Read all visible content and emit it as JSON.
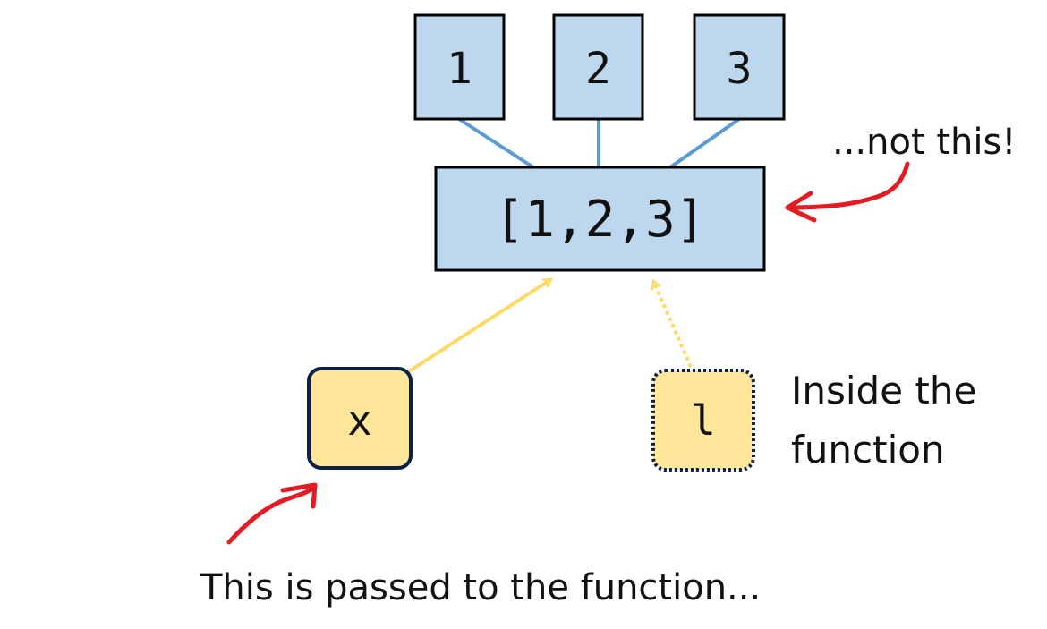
{
  "elements": {
    "box1": "1",
    "box2": "2",
    "box3": "3",
    "list_box": "[1,2,3]",
    "var_x": "x",
    "var_l": "l"
  },
  "captions": {
    "not_this": "...not this!",
    "inside_line1": "Inside the",
    "inside_line2": "function",
    "passed": "This is passed to the function..."
  },
  "colors": {
    "element_fill": "#bdd7ee",
    "variable_fill": "#ffe699",
    "edge_blue": "#5b9bd5",
    "pointer_yellow": "#ffd966",
    "annotation_red": "#e31b23",
    "variable_border": "#0b1f4b"
  }
}
